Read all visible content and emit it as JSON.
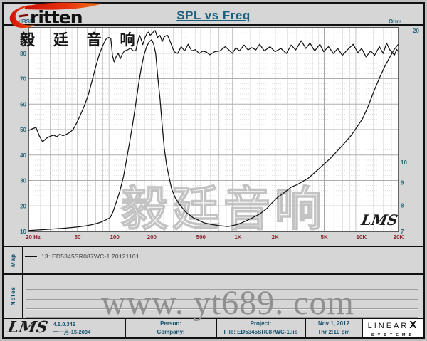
{
  "header": {
    "title": "SPL vs Freq"
  },
  "logo": {
    "brand": "ritten",
    "chinese": "毅 廷 音 响",
    "swoosh_color": "#e03010"
  },
  "chart_data": {
    "type": "line",
    "title": "SPL vs Freq",
    "grid": "on",
    "signature": "LMS",
    "watermark": "毅廷音响",
    "x_axis": {
      "label": "Hz",
      "scale": "log",
      "min": 20,
      "max": 20000,
      "ticks": [
        {
          "v": 20,
          "label": "20 Hz"
        },
        {
          "v": 50,
          "label": "50"
        },
        {
          "v": 100,
          "label": "100"
        },
        {
          "v": 200,
          "label": "200"
        },
        {
          "v": 500,
          "label": "500"
        },
        {
          "v": 1000,
          "label": "1K"
        },
        {
          "v": 2000,
          "label": "2K"
        },
        {
          "v": 5000,
          "label": "5K"
        },
        {
          "v": 10000,
          "label": "10K"
        },
        {
          "v": 20000,
          "label": "20K"
        }
      ]
    },
    "y_left": {
      "label": "dBSPL",
      "scale": "linear",
      "min": 10,
      "max": 90,
      "ticks": [
        {
          "v": 80,
          "label": "80"
        },
        {
          "v": 70,
          "label": "70"
        },
        {
          "v": 60,
          "label": "60"
        },
        {
          "v": 50,
          "label": "50"
        },
        {
          "v": 40,
          "label": "40"
        },
        {
          "v": 30,
          "label": "30"
        },
        {
          "v": 20,
          "label": "20"
        },
        {
          "v": 10,
          "label": "10"
        }
      ]
    },
    "y_right": {
      "label": "Ohm",
      "scale": "log",
      "min": 7,
      "max": 20,
      "ticks": [
        {
          "v": 20,
          "label": "20"
        },
        {
          "v": 10,
          "label": "10"
        },
        {
          "v": 9,
          "label": "9"
        },
        {
          "v": 8,
          "label": "8"
        },
        {
          "v": 7,
          "label": "7"
        }
      ]
    },
    "series": [
      {
        "name": "SPL",
        "axis": "left",
        "points": [
          [
            20,
            49.6
          ],
          [
            21.5,
            50.3
          ],
          [
            23,
            50.8
          ],
          [
            24.5,
            47.5
          ],
          [
            26,
            45.2
          ],
          [
            28,
            46.6
          ],
          [
            30,
            47.4
          ],
          [
            32,
            47.8
          ],
          [
            34,
            47.2
          ],
          [
            36,
            48.2
          ],
          [
            38,
            47.6
          ],
          [
            40,
            48.0
          ],
          [
            43,
            48.8
          ],
          [
            46,
            50.0
          ],
          [
            49,
            52.5
          ],
          [
            53,
            56.0
          ],
          [
            57,
            59.5
          ],
          [
            61,
            63.5
          ],
          [
            65,
            68.5
          ],
          [
            70,
            74.5
          ],
          [
            75,
            79.5
          ],
          [
            80,
            83.0
          ],
          [
            85,
            85.5
          ],
          [
            89,
            86.2
          ],
          [
            93,
            85.8
          ],
          [
            96,
            79.0
          ],
          [
            99,
            76.6
          ],
          [
            103,
            78.8
          ],
          [
            107,
            80.0
          ],
          [
            111,
            77.8
          ],
          [
            115,
            79.6
          ],
          [
            120,
            80.9
          ],
          [
            127,
            81.3
          ],
          [
            134,
            82.0
          ],
          [
            141,
            81.0
          ],
          [
            148,
            80.9
          ],
          [
            154,
            84.6
          ],
          [
            159,
            87.0
          ],
          [
            164,
            85.4
          ],
          [
            169,
            83.4
          ],
          [
            176,
            86.1
          ],
          [
            183,
            87.8
          ],
          [
            188,
            88.3
          ],
          [
            194,
            87.1
          ],
          [
            200,
            87.6
          ],
          [
            207,
            88.5
          ],
          [
            213,
            88.9
          ],
          [
            222,
            86.2
          ],
          [
            233,
            87.0
          ],
          [
            243,
            84.6
          ],
          [
            251,
            86.3
          ],
          [
            259,
            86.8
          ],
          [
            268,
            87.0
          ],
          [
            277,
            85.4
          ],
          [
            285,
            84.0
          ],
          [
            303,
            80.6
          ],
          [
            324,
            79.9
          ],
          [
            346,
            82.6
          ],
          [
            369,
            80.9
          ],
          [
            394,
            83.5
          ],
          [
            421,
            80.9
          ],
          [
            450,
            81.4
          ],
          [
            485,
            79.9
          ],
          [
            517,
            80.8
          ],
          [
            552,
            80.5
          ],
          [
            590,
            79.4
          ],
          [
            646,
            80.6
          ],
          [
            712,
            80.9
          ],
          [
            788,
            82.6
          ],
          [
            842,
            81.3
          ],
          [
            899,
            79.9
          ],
          [
            960,
            82.2
          ],
          [
            1025,
            80.9
          ],
          [
            1120,
            83.2
          ],
          [
            1205,
            81.3
          ],
          [
            1290,
            82.2
          ],
          [
            1395,
            81.3
          ],
          [
            1495,
            83.5
          ],
          [
            1635,
            80.9
          ],
          [
            1815,
            82.6
          ],
          [
            1995,
            80.6
          ],
          [
            2225,
            81.9
          ],
          [
            2465,
            79.9
          ],
          [
            2695,
            83.2
          ],
          [
            2935,
            81.3
          ],
          [
            3255,
            84.9
          ],
          [
            3545,
            81.9
          ],
          [
            3825,
            84.0
          ],
          [
            4185,
            80.9
          ],
          [
            4605,
            83.5
          ],
          [
            4945,
            80.6
          ],
          [
            5405,
            82.6
          ],
          [
            5935,
            79.9
          ],
          [
            6425,
            81.9
          ],
          [
            7015,
            79.2
          ],
          [
            7695,
            81.3
          ],
          [
            8565,
            83.5
          ],
          [
            9365,
            80.2
          ],
          [
            10035,
            81.9
          ],
          [
            10905,
            78.6
          ],
          [
            11905,
            80.9
          ],
          [
            12805,
            79.2
          ],
          [
            14005,
            82.6
          ],
          [
            15005,
            79.9
          ],
          [
            16005,
            84.0
          ],
          [
            17005,
            81.3
          ],
          [
            18505,
            79.3
          ],
          [
            19300,
            81.5
          ],
          [
            20000,
            80.6
          ]
        ]
      },
      {
        "name": "Impedance",
        "axis": "right",
        "points": [
          [
            20,
            7.03
          ],
          [
            25,
            7.06
          ],
          [
            32,
            7.09
          ],
          [
            40,
            7.12
          ],
          [
            50,
            7.16
          ],
          [
            58,
            7.2
          ],
          [
            66,
            7.25
          ],
          [
            76,
            7.33
          ],
          [
            85,
            7.43
          ],
          [
            92,
            7.52
          ],
          [
            97,
            7.75
          ],
          [
            100,
            7.95
          ],
          [
            104,
            8.2
          ],
          [
            110,
            8.6
          ],
          [
            118,
            9.3
          ],
          [
            126,
            10.3
          ],
          [
            133,
            11.2
          ],
          [
            140,
            12.2
          ],
          [
            148,
            13.5
          ],
          [
            156,
            14.9
          ],
          [
            164,
            16.2
          ],
          [
            172,
            17.3
          ],
          [
            181,
            18.1
          ],
          [
            190,
            18.6
          ],
          [
            199,
            18.8
          ],
          [
            207,
            18.4
          ],
          [
            215,
            17.5
          ],
          [
            224,
            15.4
          ],
          [
            233,
            13.9
          ],
          [
            242,
            12.2
          ],
          [
            252,
            10.8
          ],
          [
            263,
            9.9
          ],
          [
            275,
            9.3
          ],
          [
            290,
            8.7
          ],
          [
            311,
            8.3
          ],
          [
            335,
            8.05
          ],
          [
            378,
            7.72
          ],
          [
            437,
            7.5
          ],
          [
            528,
            7.32
          ],
          [
            604,
            7.26
          ],
          [
            700,
            7.21
          ],
          [
            830,
            7.18
          ],
          [
            1000,
            7.26
          ],
          [
            1150,
            7.38
          ],
          [
            1300,
            7.5
          ],
          [
            1500,
            7.66
          ],
          [
            1700,
            7.86
          ],
          [
            1840,
            8.05
          ],
          [
            2100,
            8.35
          ],
          [
            2300,
            8.5
          ],
          [
            2700,
            8.8
          ],
          [
            3000,
            8.9
          ],
          [
            3700,
            9.2
          ],
          [
            4500,
            9.65
          ],
          [
            5600,
            10.2
          ],
          [
            7000,
            10.9
          ],
          [
            8300,
            11.5
          ],
          [
            10200,
            12.5
          ],
          [
            11300,
            13.3
          ],
          [
            12600,
            14.4
          ],
          [
            14100,
            15.5
          ],
          [
            15500,
            16.4
          ],
          [
            17000,
            17.2
          ],
          [
            18500,
            17.9
          ],
          [
            20000,
            18.4
          ]
        ]
      }
    ]
  },
  "legend": {
    "row_label": "Map",
    "entries": [
      {
        "label": "13: ED5345SR087WC-1 20121101"
      }
    ]
  },
  "notes": {
    "row_label": "Notes",
    "line_count": 4
  },
  "watermarks": {
    "bottom": "www. yt689. com"
  },
  "footer": {
    "lms_logo": "LMS",
    "version": "4.5.0.349",
    "version_date": "十一月-15-2004",
    "person_label": "Person:",
    "company_label": "Company:",
    "project_label": "Project:",
    "file_label": "File: ED5345SR087WC-1.lib",
    "date": "Nov 1, 2012",
    "time": "Thr 2:10 pm",
    "linearx": {
      "line1": "LINEAR",
      "x": "X",
      "line2": "SYSTEMS"
    }
  },
  "colors": {
    "accent_teal": "#19607f",
    "freq_label_maroon": "#8a2633",
    "curve_black": "#141414",
    "grid_major": "#a8a8a8",
    "grid_minor": "#d8d8d8",
    "watermark_gray": "#bdbdbd",
    "logo_red": "#e03010",
    "panel_gray": "#d6d6d6"
  }
}
